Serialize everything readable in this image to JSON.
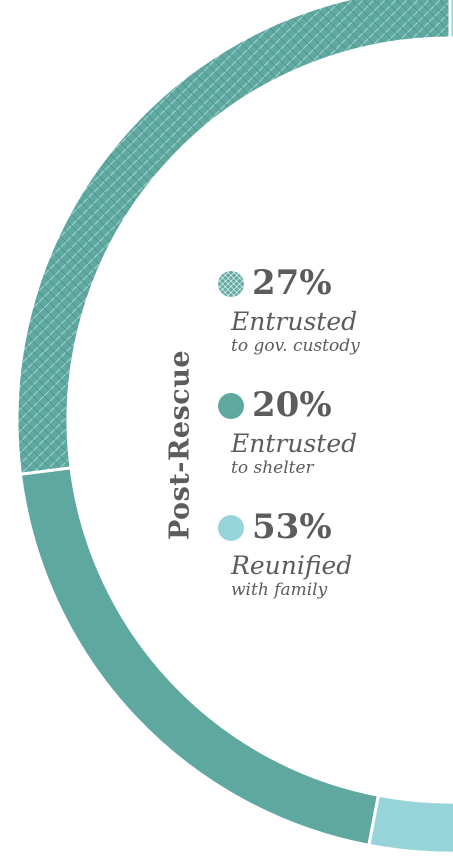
{
  "chart_data": {
    "type": "pie",
    "variant": "donut",
    "title": "Post-Rescue",
    "categories": [
      "Entrusted to gov. custody",
      "Entrusted to shelter",
      "Reunified with family"
    ],
    "values": [
      27,
      20,
      53
    ],
    "unit": "%",
    "legend": [
      {
        "value_label": "27%",
        "line1": "Entrusted",
        "line2": "to gov. custody",
        "color": "#5fa9a1",
        "pattern": "crosshatch"
      },
      {
        "value_label": "20%",
        "line1": "Entrusted",
        "line2": "to shelter",
        "color": "#5fa8a0",
        "pattern": "solid"
      },
      {
        "value_label": "53%",
        "line1": "Reunified",
        "line2": "with family",
        "color": "#97d4d9",
        "pattern": "solid"
      }
    ],
    "legend_position": "inside-center"
  }
}
